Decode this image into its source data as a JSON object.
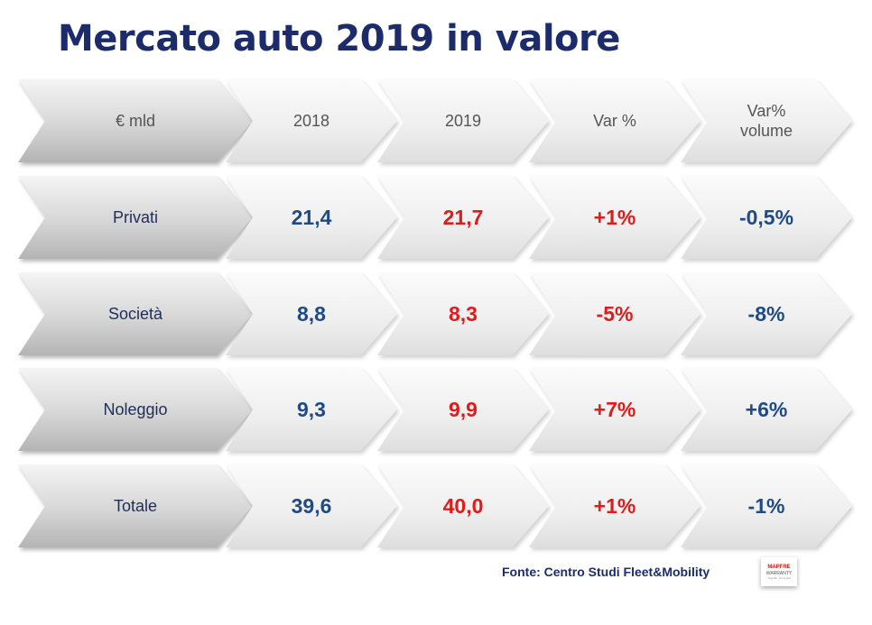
{
  "title": "Mercato auto 2019 in valore",
  "header": {
    "label": "€ mld",
    "col_2018": "2018",
    "col_2019": "2019",
    "col_var": "Var %",
    "col_varvol_line1": "Var%",
    "col_varvol_line2": "volume"
  },
  "rows": [
    {
      "label": "Privati",
      "v2018": "21,4",
      "v2019": "21,7",
      "var": "+1%",
      "varvol": "-0,5%"
    },
    {
      "label": "Società",
      "v2018": "8,8",
      "v2019": "8,3",
      "var": "-5%",
      "varvol": "-8%"
    },
    {
      "label": "Noleggio",
      "v2018": "9,3",
      "v2019": "9,9",
      "var": "+7%",
      "varvol": "+6%"
    },
    {
      "label": "Totale",
      "v2018": "39,6",
      "v2019": "40,0",
      "var": "+1%",
      "varvol": "-1%"
    }
  ],
  "source": "Fonte: Centro Studi Fleet&Mobility",
  "logo": {
    "line1": "MAPFRE",
    "line2": "WARRANTY",
    "line3": "Your life, Our world"
  },
  "colors": {
    "title": "#1c2c6b",
    "blue_value": "#1f4a86",
    "red_value": "#e31a1a"
  }
}
